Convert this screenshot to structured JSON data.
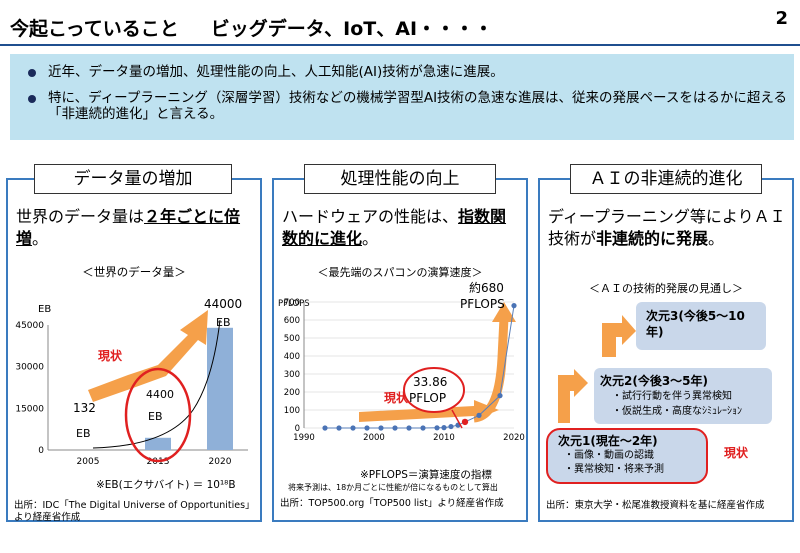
{
  "header": {
    "title_part1": "今起こっていること",
    "title_part2": "ビッグデータ、IoT、AI・・・・",
    "page_number": "2"
  },
  "bullets": [
    "近年、データ量の増加、処理性能の向上、人工知能(AI)技術が急速に進展。",
    "特に、ディープラーニング（深層学習）技術などの機械学習型AI技術の急速な進展は、従来の発展ペースをはるかに超える「非連続的進化」と言える。"
  ],
  "colors": {
    "accent": "#3a7bbf",
    "highlight_red": "#e02020",
    "arrow_orange": "#f5a04a",
    "bar_blue": "#8fb0d8"
  },
  "panel1": {
    "title": "データ量の増加",
    "desc_pre": "世界のデータ量は",
    "desc_bold": "２年ごとに倍増",
    "desc_post": "。",
    "chart_caption": "＜世界のデータ量＞",
    "unit_label": "EB",
    "status_label": "現状",
    "note": "※EB(エクサバイト) ＝ 10¹⁸B",
    "source": "出所：IDC「The Digital Universe of Opportunities」より経産省作成"
  },
  "panel2": {
    "title": "処理性能の向上",
    "desc_pre": "ハードウェアの性能は、",
    "desc_bold": "指数関数的に進化",
    "desc_post": "。",
    "chart_caption": "＜最先端のスパコンの演算速度＞",
    "unit_label": "PFLOPS",
    "status_label": "現状",
    "annot_now_value": "33.86",
    "annot_now_unit": "PFLOP",
    "annot_future_value": "約680",
    "annot_future_unit": "PFLOPS",
    "note1": "※PFLOPS＝演算速度の指標",
    "note2": "将来予測は、18か月ごとに性能が倍になるものとして算出",
    "source": "出所：TOP500.org「TOP500 list」より経産省作成"
  },
  "panel3": {
    "title": "ＡＩの非連続的進化",
    "desc_pre": "ディープラーニング等によりＡＩ技術が",
    "desc_bold": "非連続的に発展",
    "desc_post": "。",
    "chart_caption": "＜ＡＩの技術的発展の見通し＞",
    "status_label": "現状",
    "steps": [
      {
        "title": "次元1(現在〜2年)",
        "items": [
          "・画像・動画の認識",
          "・異常検知・将来予測"
        ]
      },
      {
        "title": "次元2(今後3〜5年)",
        "items": [
          "・試行行動を伴う異常検知",
          "・仮説生成・高度なｼﾐｭﾚｰｼｮﾝ"
        ]
      },
      {
        "title": "次元3(今後5〜10年)",
        "items": []
      }
    ],
    "source": "出所：東京大学・松尾准教授資料を基に経産省作成"
  },
  "chart_data": [
    {
      "type": "bar",
      "title": "＜世界のデータ量＞",
      "ylabel": "EB",
      "categories": [
        "2013",
        "2020"
      ],
      "values": [
        4400,
        44000
      ],
      "data_labels": [
        "4400 EB",
        "44000 EB"
      ],
      "extra_label": "132 EB",
      "x_ticks": [
        "2005",
        "2013",
        "2020"
      ],
      "y_ticks": [
        "0",
        "15000",
        "30000",
        "45000"
      ],
      "ylim": [
        0,
        45000
      ]
    },
    {
      "type": "scatter",
      "title": "＜最先端のスパコンの演算速度＞",
      "ylabel": "PFLOPS",
      "x": [
        1993,
        1995,
        1997,
        1999,
        2001,
        2003,
        2005,
        2007,
        2009,
        2010,
        2011,
        2012,
        2013,
        2015,
        2018,
        2020
      ],
      "y": [
        0,
        0,
        0,
        0,
        0,
        0,
        0,
        0,
        1,
        2,
        8,
        16,
        33.86,
        70,
        180,
        680
      ],
      "x_ticks": [
        "1990",
        "2000",
        "2010",
        "2020"
      ],
      "y_ticks": [
        "0",
        "100",
        "200",
        "300",
        "400",
        "500",
        "600",
        "700"
      ],
      "xlim": [
        1990,
        2020
      ],
      "ylim": [
        0,
        700
      ]
    }
  ]
}
